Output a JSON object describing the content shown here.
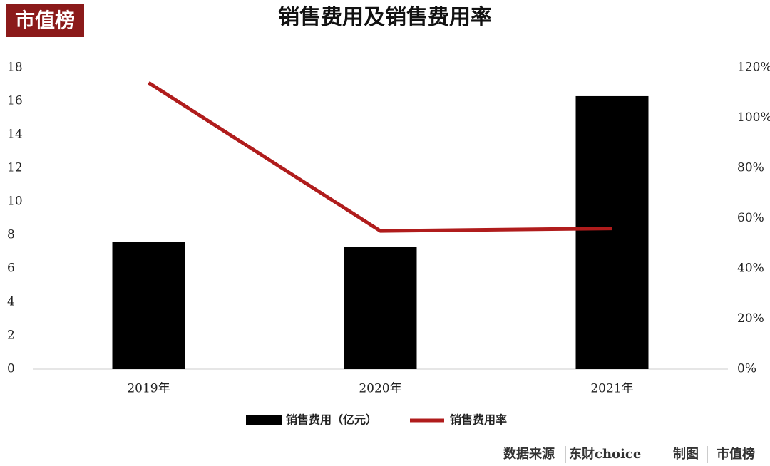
{
  "chart_data": {
    "type": "bar_line",
    "title": "销售费用及销售费用率",
    "categories": [
      "2019年",
      "2020年",
      "2021年"
    ],
    "series": [
      {
        "name": "销售费用（亿元）",
        "type": "bar",
        "color": "#000000",
        "values": [
          7.6,
          7.3,
          16.3
        ]
      },
      {
        "name": "销售费用率",
        "type": "line",
        "color": "#b01c1c",
        "axis": "y2",
        "values": [
          114,
          55,
          56
        ]
      }
    ],
    "ylim": [
      0,
      18
    ],
    "yticks": [
      0,
      2,
      4,
      6,
      8,
      10,
      12,
      14,
      16,
      18
    ],
    "y2lim": [
      0,
      120
    ],
    "y2ticks": [
      {
        "value": 0,
        "label": "0%"
      },
      {
        "value": 20,
        "label": "20%"
      },
      {
        "value": 40,
        "label": "40%"
      },
      {
        "value": 60,
        "label": "60%"
      },
      {
        "value": 80,
        "label": "80%"
      },
      {
        "value": 100,
        "label": "100%"
      },
      {
        "value": 120,
        "label": "120%"
      }
    ],
    "grid": false,
    "legend": "bottom"
  },
  "header": {
    "logo": "市值榜"
  },
  "footer": {
    "source": "数据来源",
    "source_name": "东财choice",
    "made_by": "制图",
    "maker": "市值榜"
  }
}
